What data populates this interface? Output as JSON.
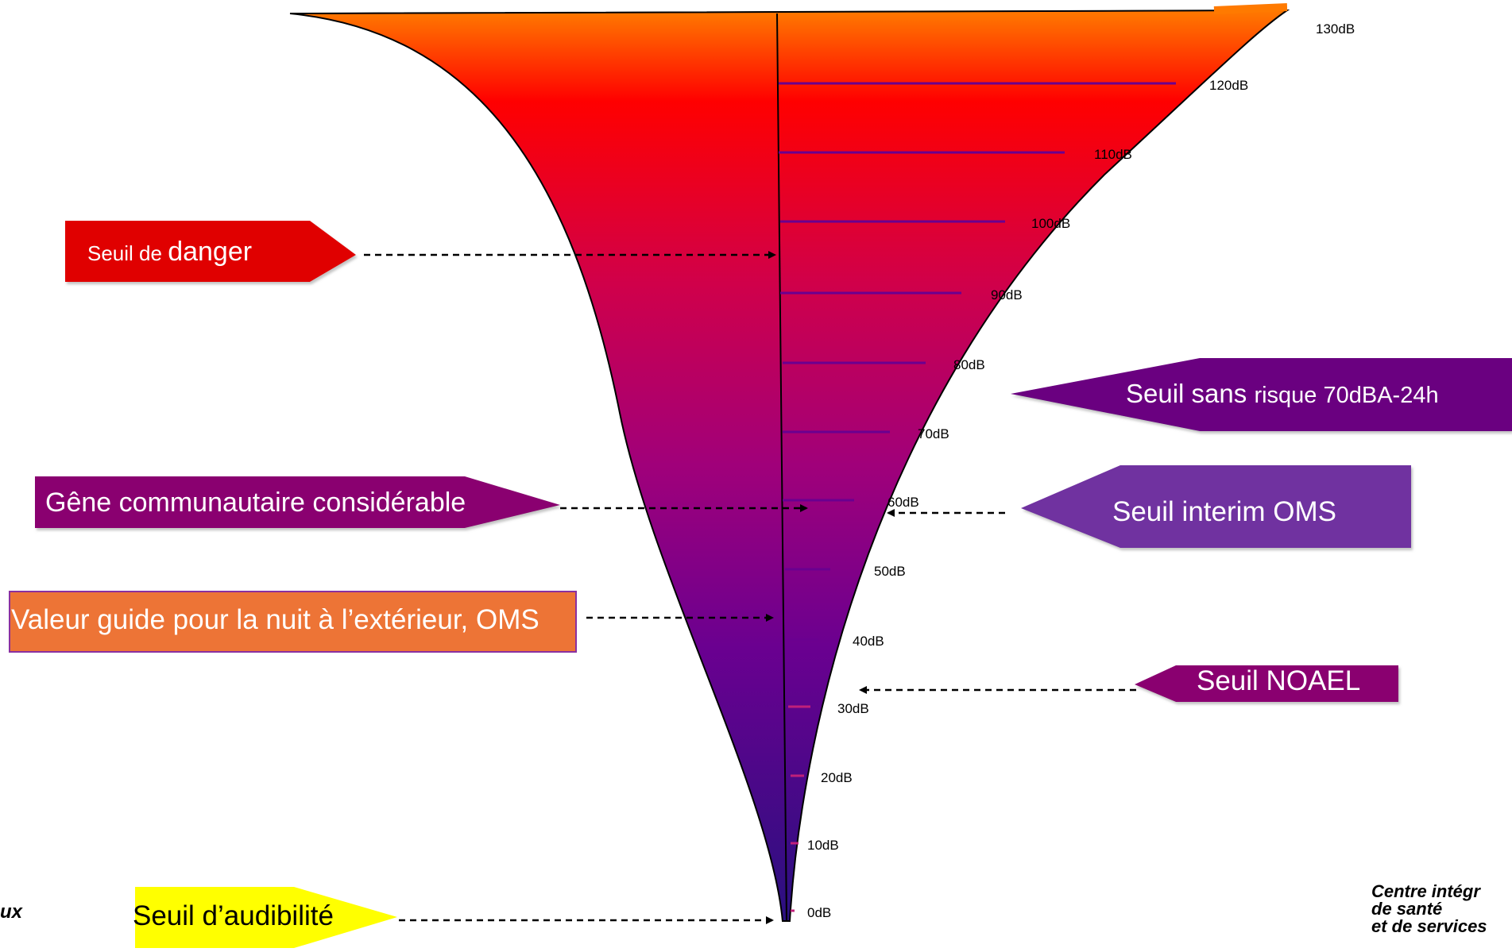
{
  "scale": {
    "unit": "dB",
    "ticks": [
      "0dB",
      "10dB",
      "20dB",
      "30dB",
      "40dB",
      "50dB",
      "60dB",
      "70dB",
      "80dB",
      "90dB",
      "100dB",
      "110dB",
      "120dB",
      "130dB"
    ]
  },
  "callouts": {
    "danger_prefix": "Seuil de ",
    "danger_word": "danger",
    "gene": "Gêne communautaire considérable",
    "valeur_guide": "Valeur guide pour la nuit à l’extérieur, OMS",
    "audibilite": "Seuil d’audibilité",
    "sans_risque_prefix": "Seuil sans ",
    "sans_risque_suffix": "risque 70dBA-24h",
    "interim": "Seuil interim OMS",
    "noael": "Seuil NOAEL"
  },
  "corner_text": {
    "bottom_left": "ux",
    "bottom_right_1": "Centre intégr",
    "bottom_right_2": "de santé",
    "bottom_right_3": "et de services"
  },
  "colors": {
    "top": "#ff7a00",
    "red": "#ff0000",
    "crimson": "#d0004a",
    "magenta": "#a0007a",
    "purple": "#6a0090",
    "indigo": "#2a1080",
    "danger_box": "#e00000",
    "gene_box": "#8a0070",
    "guide_box": "#ed7436",
    "guide_border": "#8a30a0",
    "audibilite_box": "#ffff00",
    "sans_risque_box": "#6a0080",
    "interim_box": "#7030a0",
    "noael_box": "#8a0070"
  }
}
